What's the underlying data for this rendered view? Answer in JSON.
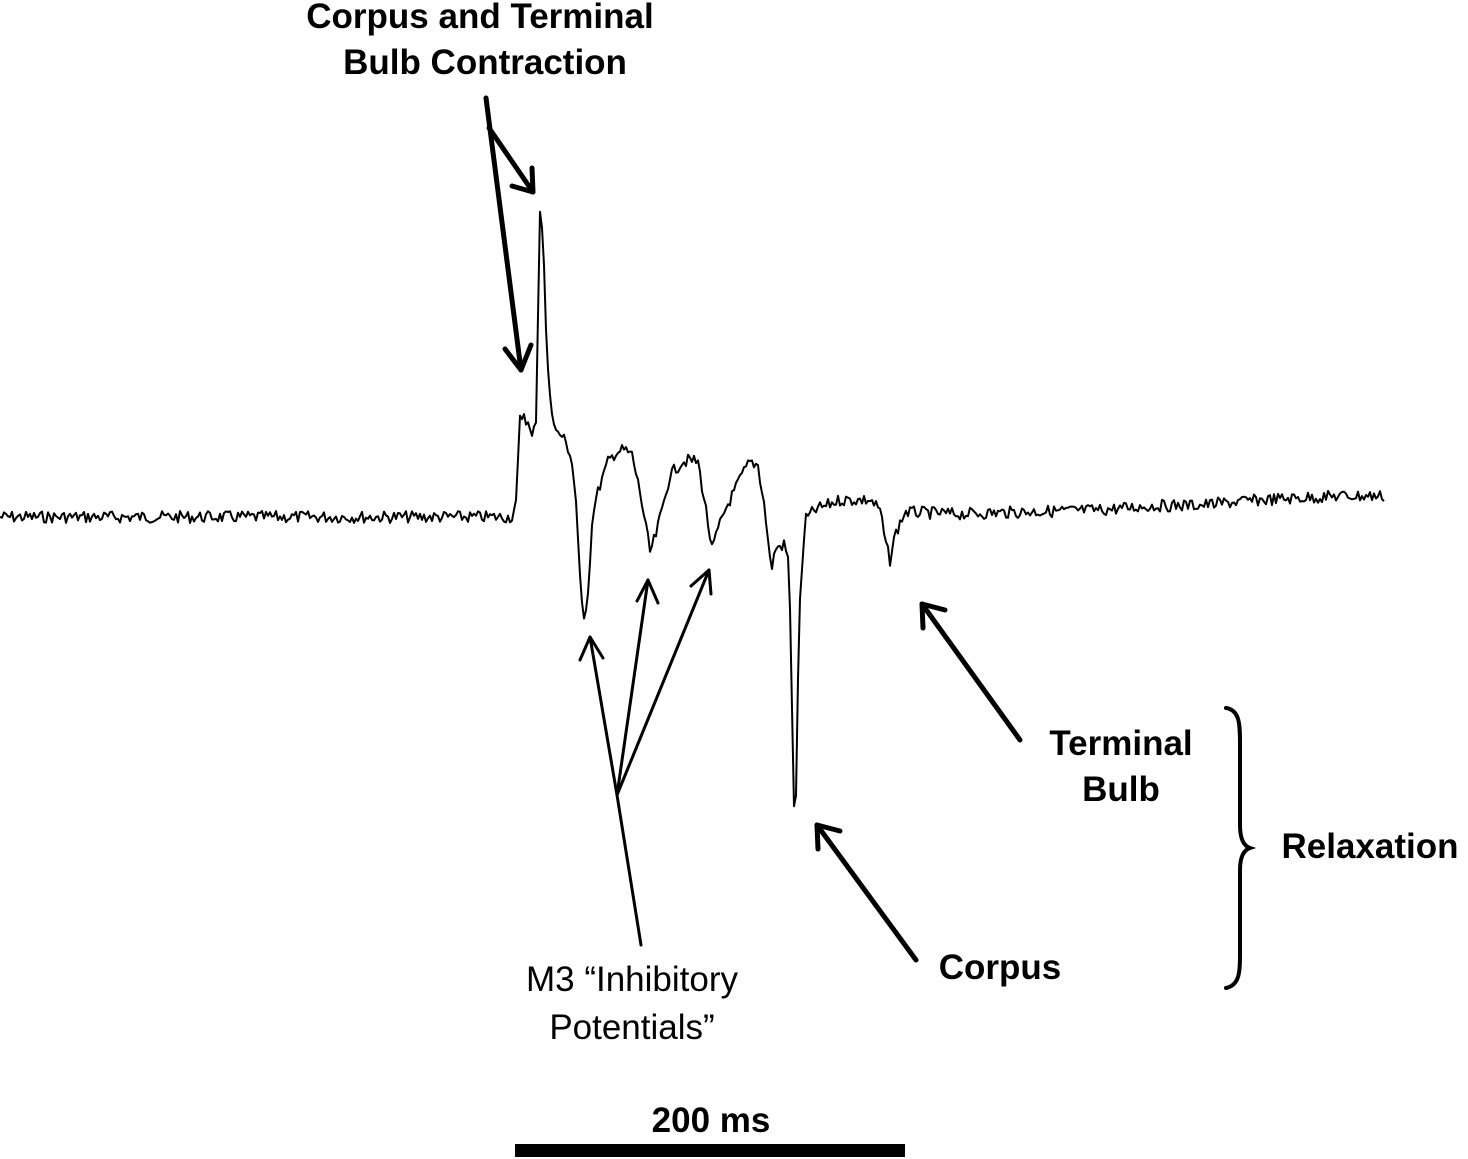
{
  "labels": {
    "contraction_line1": "Corpus and Terminal",
    "contraction_line2": "Bulb Contraction",
    "inhibitory_line1": "M3 “Inhibitory",
    "inhibitory_line2": "Potentials”",
    "terminal_line1": "Terminal",
    "terminal_line2": "Bulb",
    "corpus": "Corpus",
    "relaxation": "Relaxation",
    "scale_bar": "200 ms"
  },
  "colors": {
    "ink": "#000000",
    "background": "#ffffff"
  }
}
